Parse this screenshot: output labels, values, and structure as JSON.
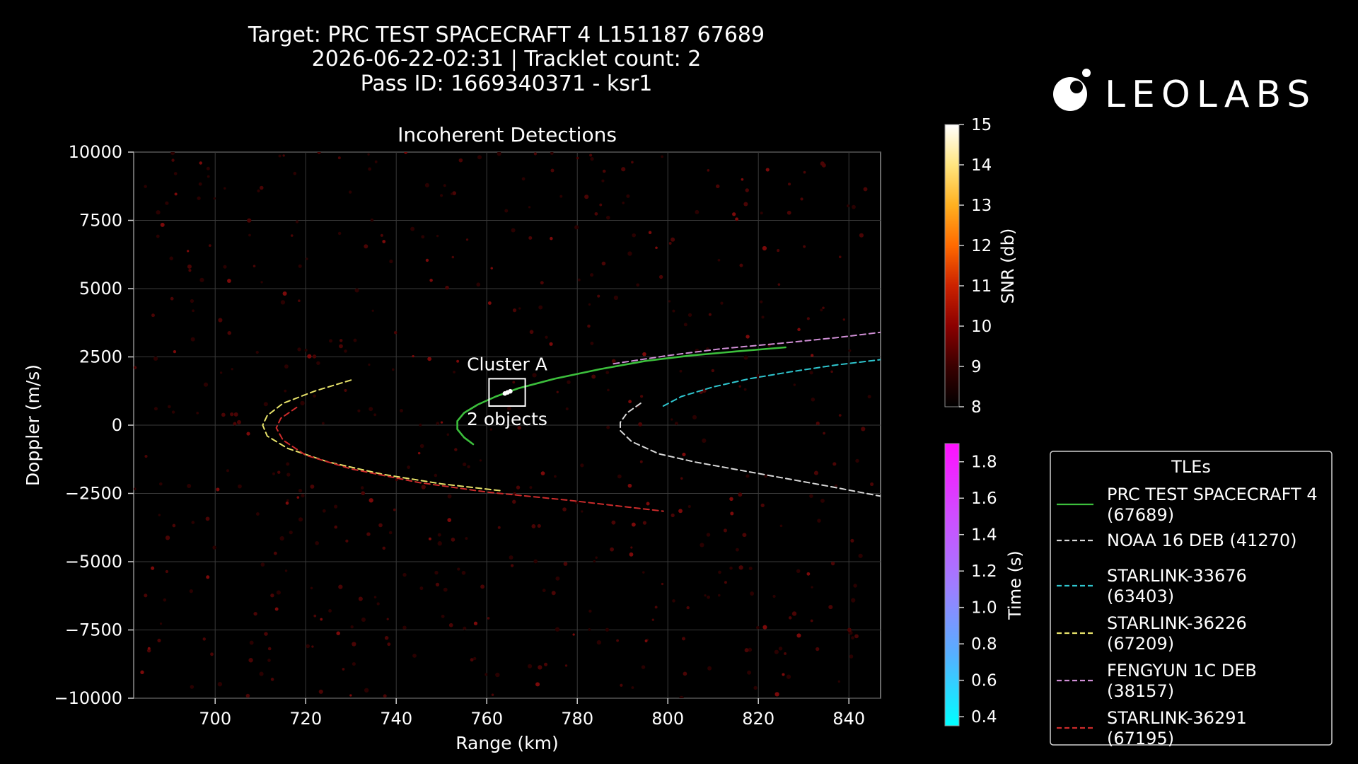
{
  "header": {
    "title_line1": "Target: PRC TEST SPACECRAFT 4 L151187 67689",
    "title_line2": "2026-06-22-02:31 | Tracklet count: 2",
    "title_line3": "Pass ID: 1669340371 - ksr1"
  },
  "logo": {
    "text": "LEOLABS",
    "icon": "leolabs-logo-icon"
  },
  "chart_data": {
    "type": "scatter",
    "title": "Incoherent Detections",
    "xlabel": "Range (km)",
    "ylabel": "Doppler (m/s)",
    "xlim": [
      682,
      847
    ],
    "ylim": [
      -10000,
      10000
    ],
    "x_ticks": [
      {
        "value": 700,
        "label": "700"
      },
      {
        "value": 720,
        "label": "720"
      },
      {
        "value": 740,
        "label": "740"
      },
      {
        "value": 760,
        "label": "760"
      },
      {
        "value": 780,
        "label": "780"
      },
      {
        "value": 800,
        "label": "800"
      },
      {
        "value": 820,
        "label": "820"
      },
      {
        "value": 840,
        "label": "840"
      }
    ],
    "y_ticks": [
      {
        "value": 10000,
        "label": "10000"
      },
      {
        "value": 7500,
        "label": "7500"
      },
      {
        "value": 5000,
        "label": "5000"
      },
      {
        "value": 2500,
        "label": "2500"
      },
      {
        "value": 0,
        "label": "0"
      },
      {
        "value": -2500,
        "label": "−2500"
      },
      {
        "value": -5000,
        "label": "−5000"
      },
      {
        "value": -7500,
        "label": "−7500"
      },
      {
        "value": -10000,
        "label": "−10000"
      }
    ],
    "grid": true,
    "background_color": "#000000",
    "tle_legend": {
      "title": "TLEs",
      "position": "lower-right outside"
    },
    "tle_series": [
      {
        "name_line1": "PRC TEST SPACECRAFT 4",
        "name_line2": "(67689)",
        "color": "#3cbf3c",
        "dash": "solid",
        "points": [
          [
            757,
            -700
          ],
          [
            755,
            -450
          ],
          [
            753.5,
            -150
          ],
          [
            753.5,
            150
          ],
          [
            755,
            450
          ],
          [
            758,
            750
          ],
          [
            762,
            1050
          ],
          [
            767,
            1350
          ],
          [
            775,
            1700
          ],
          [
            785,
            2050
          ],
          [
            795,
            2350
          ],
          [
            805,
            2550
          ],
          [
            815,
            2700
          ],
          [
            826,
            2850
          ]
        ]
      },
      {
        "name_line1": "NOAA 16 DEB (41270)",
        "name_line2": "",
        "color": "#d9d9d9",
        "dash": "dashed",
        "points": [
          [
            794,
            800
          ],
          [
            791,
            450
          ],
          [
            789.5,
            100
          ],
          [
            789.5,
            -200
          ],
          [
            792,
            -600
          ],
          [
            798,
            -1050
          ],
          [
            806,
            -1350
          ],
          [
            816,
            -1650
          ],
          [
            826,
            -1950
          ],
          [
            836,
            -2250
          ],
          [
            847,
            -2600
          ]
        ]
      },
      {
        "name_line1": "STARLINK-33676",
        "name_line2": "(63403)",
        "color": "#2fc6cf",
        "dash": "dashed",
        "points": [
          [
            799,
            700
          ],
          [
            803,
            1050
          ],
          [
            810,
            1400
          ],
          [
            818,
            1700
          ],
          [
            827,
            1950
          ],
          [
            837,
            2200
          ],
          [
            847,
            2400
          ]
        ]
      },
      {
        "name_line1": "STARLINK-36226",
        "name_line2": "(67209)",
        "color": "#e8e36a",
        "dash": "dashed",
        "points": [
          [
            730,
            1650
          ],
          [
            722,
            1250
          ],
          [
            715,
            800
          ],
          [
            711.5,
            350
          ],
          [
            710.5,
            0
          ],
          [
            711.5,
            -400
          ],
          [
            716,
            -850
          ],
          [
            725,
            -1350
          ],
          [
            737,
            -1800
          ],
          [
            750,
            -2150
          ],
          [
            763,
            -2400
          ]
        ]
      },
      {
        "name_line1": "FENGYUN 1C DEB",
        "name_line2": "(38157)",
        "color": "#d08fd6",
        "dash": "dashed",
        "points": [
          [
            788,
            2250
          ],
          [
            800,
            2550
          ],
          [
            812,
            2800
          ],
          [
            825,
            3000
          ],
          [
            837,
            3200
          ],
          [
            847,
            3400
          ]
        ]
      },
      {
        "name_line1": "STARLINK-36291",
        "name_line2": "(67195)",
        "color": "#cc2b2b",
        "dash": "dashed",
        "points": [
          [
            718,
            650
          ],
          [
            714.5,
            250
          ],
          [
            713.5,
            -100
          ],
          [
            715,
            -550
          ],
          [
            720,
            -1100
          ],
          [
            730,
            -1600
          ],
          [
            745,
            -2100
          ],
          [
            760,
            -2450
          ],
          [
            778,
            -2750
          ],
          [
            799,
            -3150
          ]
        ]
      }
    ],
    "cluster": {
      "label": "Cluster A",
      "sublabel": "2 objects",
      "x_range": [
        760.5,
        768.5
      ],
      "y_range": [
        700,
        1700
      ],
      "detection_points": [
        [
          764,
          1160
        ],
        [
          764.6,
          1200
        ],
        [
          765.2,
          1240
        ]
      ]
    },
    "snr_colorbar": {
      "label": "SNR (db)",
      "min": 8,
      "max": 15,
      "ticks": [
        "15",
        "14",
        "13",
        "12",
        "11",
        "10",
        "9",
        "8"
      ],
      "colors": [
        "#000000",
        "#3a0000",
        "#8b0000",
        "#cc2200",
        "#ff6a00",
        "#ffb020",
        "#ffe680",
        "#ffffff"
      ]
    },
    "time_colorbar": {
      "label": "Time (s)",
      "min": 0.35,
      "max": 1.9,
      "ticks": [
        "1.8",
        "1.6",
        "1.4",
        "1.2",
        "1.0",
        "0.8",
        "0.6",
        "0.4"
      ],
      "colors": [
        "#00ffff",
        "#55b0ff",
        "#a07cff",
        "#d04cff",
        "#ff10ff"
      ]
    }
  }
}
